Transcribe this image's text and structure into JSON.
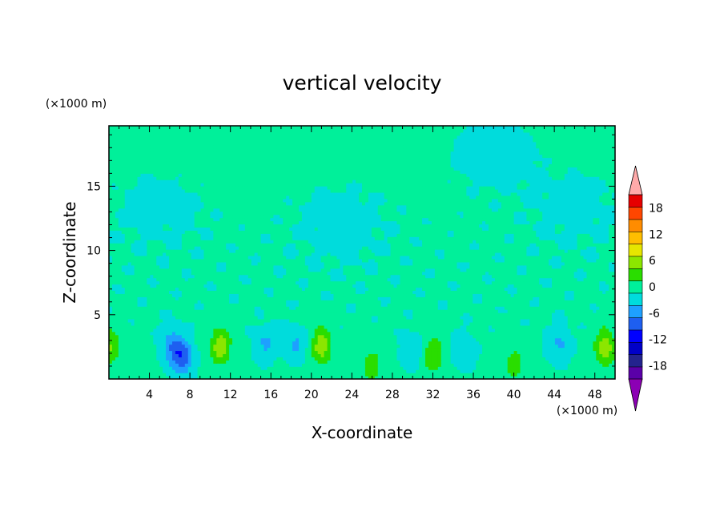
{
  "chart_data": {
    "type": "heatmap",
    "title": "vertical velocity",
    "xlabel": "X-coordinate",
    "ylabel": "Z-coordinate",
    "x_unit": "(×1000 m)",
    "y_unit": "(×1000 m)",
    "xlim": [
      0,
      50
    ],
    "ylim": [
      0,
      19.7
    ],
    "x_ticks": [
      4,
      8,
      12,
      16,
      20,
      24,
      28,
      32,
      36,
      40,
      44,
      48
    ],
    "y_ticks": [
      5,
      10,
      15
    ],
    "colorbar": {
      "levels": [
        -21,
        -18,
        -15,
        -12,
        -9,
        -6,
        -3,
        0,
        3,
        6,
        9,
        12,
        15,
        18,
        21
      ],
      "labels": [
        -18,
        -12,
        -6,
        0,
        6,
        12,
        18
      ],
      "colors": [
        "#5a00a8",
        "#23238e",
        "#0000c8",
        "#0000ff",
        "#1e5ff0",
        "#1ea0ff",
        "#00dcdc",
        "#00f09a",
        "#2add00",
        "#8ce600",
        "#e6e600",
        "#ffbe00",
        "#ff8c00",
        "#ff4600",
        "#e60000"
      ],
      "under_color": "#8c00b4",
      "over_color": "#ffaaaa"
    },
    "background_value": 0.5,
    "features": [
      {
        "x": 11,
        "z": 2.6,
        "peak": 7.5,
        "shape": "updraft"
      },
      {
        "x": 21,
        "z": 2.6,
        "peak": 7.5,
        "shape": "updraft"
      },
      {
        "x": 32,
        "z": 1.9,
        "peak": 5.5,
        "shape": "updraft"
      },
      {
        "x": 49,
        "z": 2.5,
        "peak": 7.5,
        "shape": "updraft"
      },
      {
        "x": 0.2,
        "z": 2.5,
        "peak": 5.5,
        "shape": "updraft"
      },
      {
        "x": 26,
        "z": 1.0,
        "peak": 4.0,
        "shape": "updraft"
      },
      {
        "x": 40,
        "z": 1.2,
        "peak": 3.8,
        "shape": "updraft"
      },
      {
        "x": 7.2,
        "z": 1.7,
        "peak": -8.5,
        "shape": "downdraft"
      },
      {
        "x": 6.2,
        "z": 2.8,
        "peak": -5.0,
        "shape": "downdraft"
      },
      {
        "x": 15.5,
        "z": 2.8,
        "peak": -4.0,
        "shape": "downdraft"
      },
      {
        "x": 18.5,
        "z": 2.8,
        "peak": -4.0,
        "shape": "downdraft"
      },
      {
        "x": 30,
        "z": 2.3,
        "peak": -3.5,
        "shape": "downdraft"
      },
      {
        "x": 35,
        "z": 2.3,
        "peak": -3.5,
        "shape": "downdraft"
      },
      {
        "x": 44.5,
        "z": 2.8,
        "peak": -4.0,
        "shape": "downdraft"
      },
      {
        "x": 23,
        "z": 11.8,
        "peak": -1.5,
        "shape": "broad"
      },
      {
        "x": 5,
        "z": 13,
        "peak": -1.2,
        "shape": "broad"
      },
      {
        "x": 38,
        "z": 17.5,
        "peak": -1.2,
        "shape": "broad"
      },
      {
        "x": 46,
        "z": 13,
        "peak": -1.2,
        "shape": "broad"
      }
    ]
  }
}
